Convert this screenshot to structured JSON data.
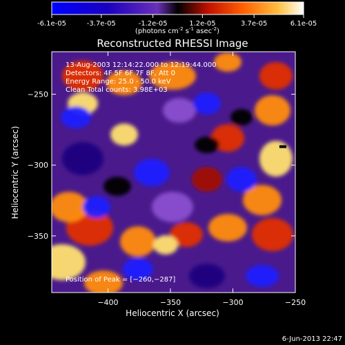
{
  "colorbar": {
    "tick_labels": [
      "-6.1e-05",
      "-3.7e-05",
      "-1.2e-05",
      "1.2e-05",
      "3.7e-05",
      "6.1e-05"
    ],
    "unit_label": "(photons cm",
    "unit_exp1": "-2",
    "unit_mid": " s",
    "unit_exp2": "-1",
    "unit_mid2": " asec",
    "unit_exp3": "-2",
    "unit_end": ")",
    "range": [
      -6.1e-05,
      6.1e-05
    ]
  },
  "chart_data": {
    "type": "heatmap",
    "title": "Reconstructed RHESSI Image",
    "xlabel": "Heliocentric X (arcsec)",
    "ylabel": "Heliocentric Y (arcsec)",
    "xlim": [
      -445,
      -250
    ],
    "ylim": [
      -390,
      -220
    ],
    "xticks": [
      -400,
      -350,
      -300,
      -250
    ],
    "xtick_labels": [
      "−400",
      "−350",
      "−300",
      "−250"
    ],
    "yticks": [
      -250,
      -300,
      -350
    ],
    "ytick_labels": [
      "−250",
      "−300",
      "−350"
    ],
    "peak": {
      "x": -260,
      "y": -287
    },
    "annotations": [
      "13-Aug-2003 12:14:22.000 to 12:19:44.000",
      "Detectors: 4F 5F 6F 7F 8F, Att 0",
      "Energy Range: 25.0 - 50.0 keV",
      "Clean     Total counts: 3.98E+03"
    ],
    "peak_label": "Position of Peak = [−260,−287]",
    "grid": false
  },
  "footer": {
    "timestamp": "6-Jun-2013 22:47"
  }
}
